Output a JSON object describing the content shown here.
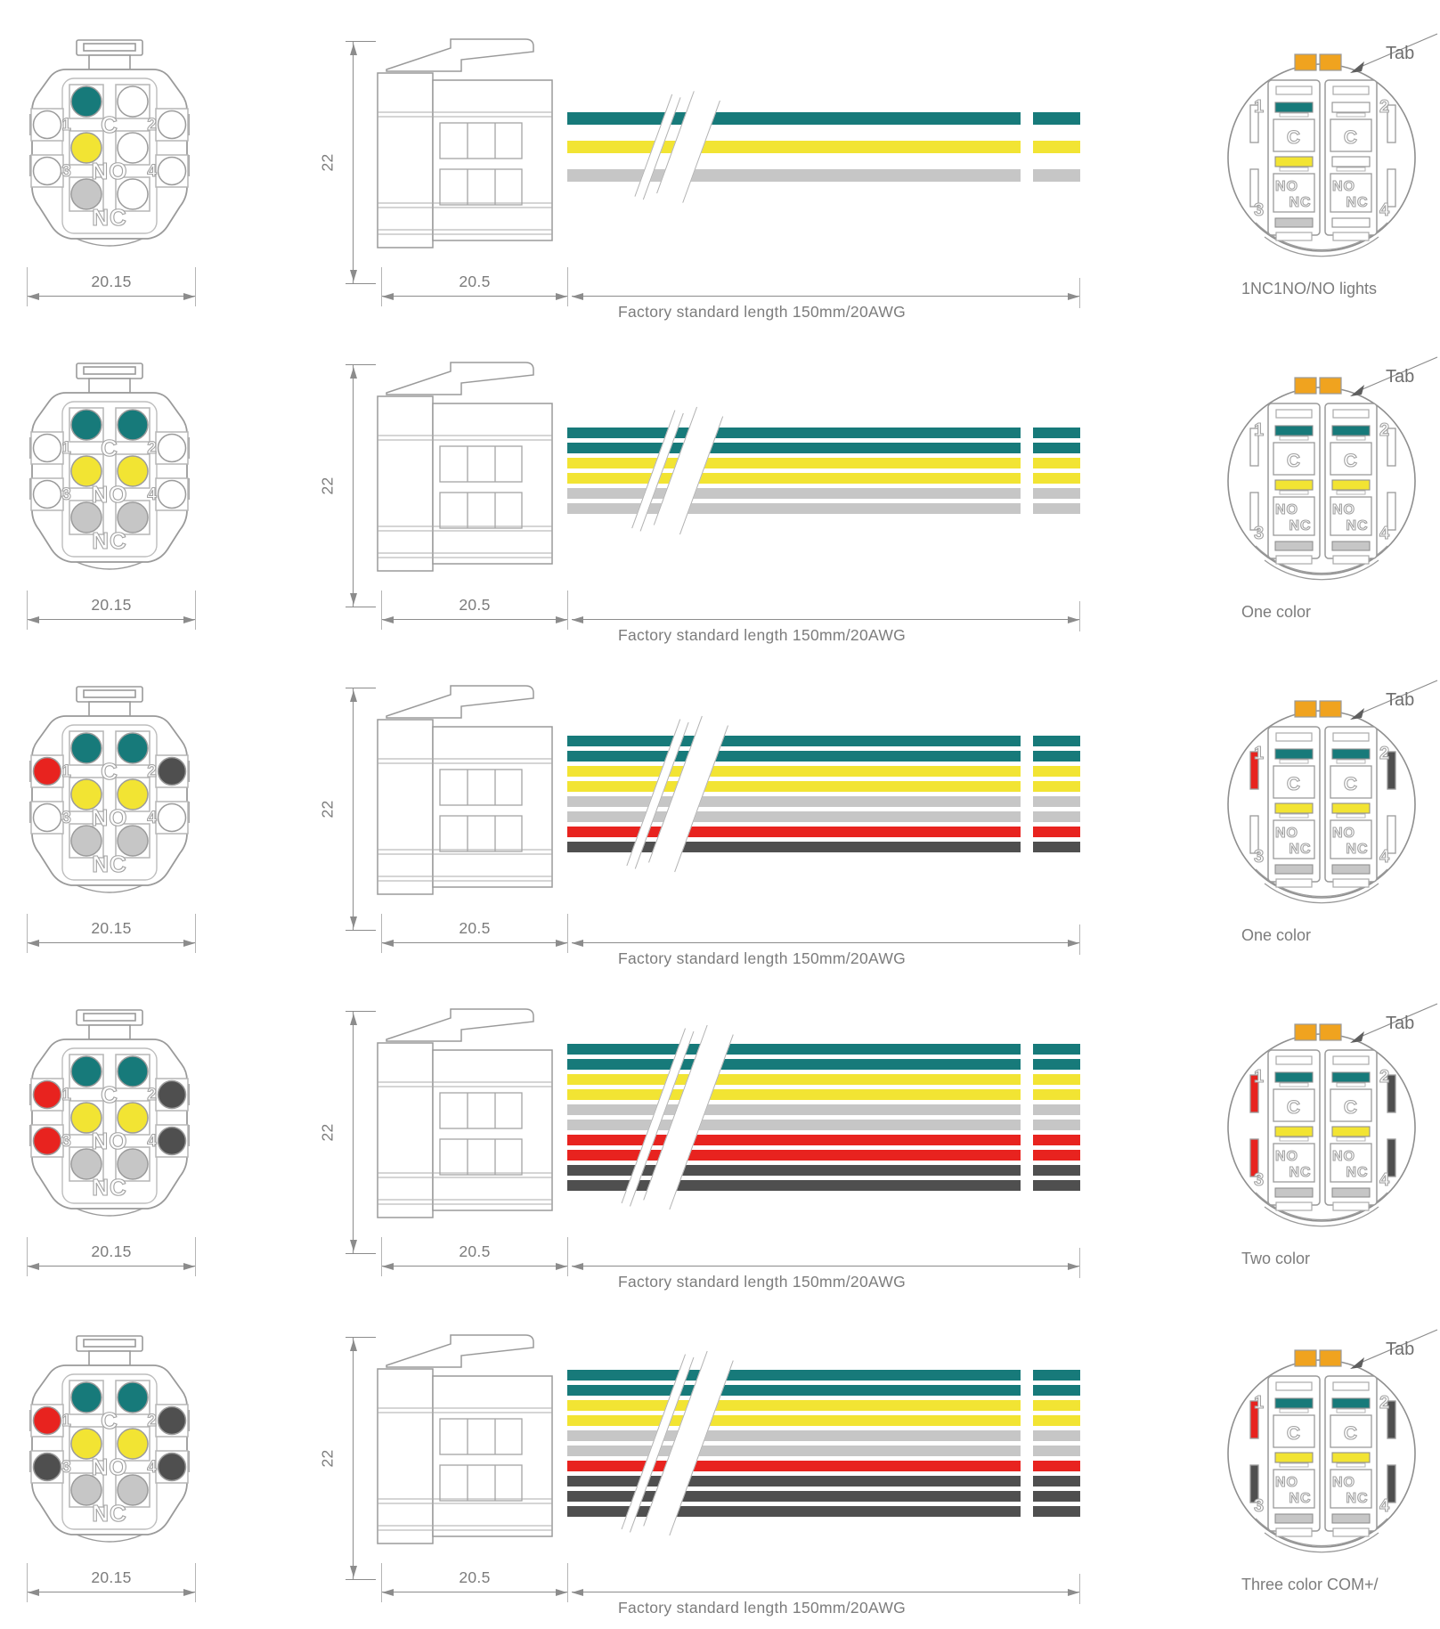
{
  "colors": {
    "teal": "#177a7a",
    "yellow": "#f2e433",
    "gray": "#c6c6c6",
    "red": "#e8231f",
    "dark": "#4f4f4f",
    "white": "#ffffff",
    "tab_orange": "#f0a31f",
    "line": "#8c8c8c",
    "text": "#7c7c7c"
  },
  "labels": {
    "common": "C",
    "normally_open": "NO",
    "normally_closed": "NC",
    "tab": "Tab",
    "pin1": "1",
    "pin2": "2",
    "pin3": "3",
    "pin4": "4"
  },
  "rows": [
    {
      "front_width_dim": "20.15",
      "side_height_dim": "22",
      "side_width_dim": "20.5",
      "wire_note": "Factory standard length 150mm/20AWG",
      "caption": "1NC1NO/NO lights",
      "front_pins": {
        "c_left": "teal",
        "c_right": "white",
        "no_left": "yellow",
        "no_right": "white",
        "nc_left": "gray",
        "nc_right": "white",
        "side1": "white",
        "side2": "white",
        "side3": "white",
        "side4": "white"
      },
      "wires": [
        "teal",
        "yellow",
        "gray"
      ],
      "back": {
        "left_bars": [
          "teal",
          "yellow",
          "gray"
        ],
        "right_bars": [
          "white",
          "white",
          "white"
        ],
        "side_slots": {
          "s1": "white",
          "s2": "white",
          "s3": "white",
          "s4": "white"
        }
      }
    },
    {
      "front_width_dim": "20.15",
      "side_height_dim": "22",
      "side_width_dim": "20.5",
      "wire_note": "Factory standard length 150mm/20AWG",
      "caption": "One color",
      "front_pins": {
        "c_left": "teal",
        "c_right": "teal",
        "no_left": "yellow",
        "no_right": "yellow",
        "nc_left": "gray",
        "nc_right": "gray",
        "side1": "white",
        "side2": "white",
        "side3": "white",
        "side4": "white"
      },
      "wires": [
        "teal",
        "teal",
        "yellow",
        "yellow",
        "gray",
        "gray"
      ],
      "back": {
        "left_bars": [
          "teal",
          "yellow",
          "gray"
        ],
        "right_bars": [
          "teal",
          "yellow",
          "gray"
        ],
        "side_slots": {
          "s1": "white",
          "s2": "white",
          "s3": "white",
          "s4": "white"
        }
      }
    },
    {
      "front_width_dim": "20.15",
      "side_height_dim": "22",
      "side_width_dim": "20.5",
      "wire_note": "Factory standard length 150mm/20AWG",
      "caption": "One color",
      "front_pins": {
        "c_left": "teal",
        "c_right": "teal",
        "no_left": "yellow",
        "no_right": "yellow",
        "nc_left": "gray",
        "nc_right": "gray",
        "side1": "red",
        "side2": "dark",
        "side3": "white",
        "side4": "white"
      },
      "wires": [
        "teal",
        "teal",
        "yellow",
        "yellow",
        "gray",
        "gray",
        "red",
        "dark"
      ],
      "back": {
        "left_bars": [
          "teal",
          "yellow",
          "gray"
        ],
        "right_bars": [
          "teal",
          "yellow",
          "gray"
        ],
        "side_slots": {
          "s1": "red",
          "s2": "dark",
          "s3": "white",
          "s4": "white"
        }
      }
    },
    {
      "front_width_dim": "20.15",
      "side_height_dim": "22",
      "side_width_dim": "20.5",
      "wire_note": "Factory standard length 150mm/20AWG",
      "caption": "Two color",
      "front_pins": {
        "c_left": "teal",
        "c_right": "teal",
        "no_left": "yellow",
        "no_right": "yellow",
        "nc_left": "gray",
        "nc_right": "gray",
        "side1": "red",
        "side2": "dark",
        "side3": "red",
        "side4": "dark"
      },
      "wires": [
        "teal",
        "teal",
        "yellow",
        "yellow",
        "gray",
        "gray",
        "red",
        "red",
        "dark",
        "dark"
      ],
      "back": {
        "left_bars": [
          "teal",
          "yellow",
          "gray"
        ],
        "right_bars": [
          "teal",
          "yellow",
          "gray"
        ],
        "side_slots": {
          "s1": "red",
          "s2": "dark",
          "s3": "red",
          "s4": "dark"
        }
      }
    },
    {
      "front_width_dim": "20.15",
      "side_height_dim": "22",
      "side_width_dim": "20.5",
      "wire_note": "Factory standard length 150mm/20AWG",
      "caption": "Three color  COM+/",
      "front_pins": {
        "c_left": "teal",
        "c_right": "teal",
        "no_left": "yellow",
        "no_right": "yellow",
        "nc_left": "gray",
        "nc_right": "gray",
        "side1": "red",
        "side2": "dark",
        "side3": "dark",
        "side4": "dark"
      },
      "wires": [
        "teal",
        "teal",
        "yellow",
        "yellow",
        "gray",
        "gray",
        "red",
        "dark",
        "dark",
        "dark"
      ],
      "back": {
        "left_bars": [
          "teal",
          "yellow",
          "gray"
        ],
        "right_bars": [
          "teal",
          "yellow",
          "gray"
        ],
        "side_slots": {
          "s1": "red",
          "s2": "dark",
          "s3": "dark",
          "s4": "dark"
        }
      }
    }
  ]
}
